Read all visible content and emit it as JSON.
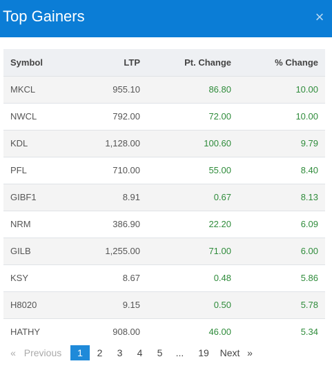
{
  "header": {
    "title": "Top Gainers",
    "close_glyph": "×"
  },
  "table": {
    "columns": {
      "symbol": "Symbol",
      "ltp": "LTP",
      "pt_change": "Pt. Change",
      "pct_change": "% Change"
    },
    "rows": [
      {
        "symbol": "MKCL",
        "ltp": "955.10",
        "pt_change": "86.80",
        "pct_change": "10.00"
      },
      {
        "symbol": "NWCL",
        "ltp": "792.00",
        "pt_change": "72.00",
        "pct_change": "10.00"
      },
      {
        "symbol": "KDL",
        "ltp": "1,128.00",
        "pt_change": "100.60",
        "pct_change": "9.79"
      },
      {
        "symbol": "PFL",
        "ltp": "710.00",
        "pt_change": "55.00",
        "pct_change": "8.40"
      },
      {
        "symbol": "GIBF1",
        "ltp": "8.91",
        "pt_change": "0.67",
        "pct_change": "8.13"
      },
      {
        "symbol": "NRM",
        "ltp": "386.90",
        "pt_change": "22.20",
        "pct_change": "6.09"
      },
      {
        "symbol": "GILB",
        "ltp": "1,255.00",
        "pt_change": "71.00",
        "pct_change": "6.00"
      },
      {
        "symbol": "KSY",
        "ltp": "8.67",
        "pt_change": "0.48",
        "pct_change": "5.86"
      },
      {
        "symbol": "H8020",
        "ltp": "9.15",
        "pt_change": "0.50",
        "pct_change": "5.78"
      },
      {
        "symbol": "HATHY",
        "ltp": "908.00",
        "pt_change": "46.00",
        "pct_change": "5.34"
      }
    ]
  },
  "pagination": {
    "prev_arrow": "«",
    "previous": "Previous",
    "pages": [
      "1",
      "2",
      "3",
      "4",
      "5"
    ],
    "ellipsis": "...",
    "last_page": "19",
    "next": "Next",
    "next_arrow": "»",
    "current_page": "1"
  },
  "colors": {
    "header": "#0b7dd6",
    "positive": "#2e8b3a",
    "active_page": "#1f8ad9"
  }
}
